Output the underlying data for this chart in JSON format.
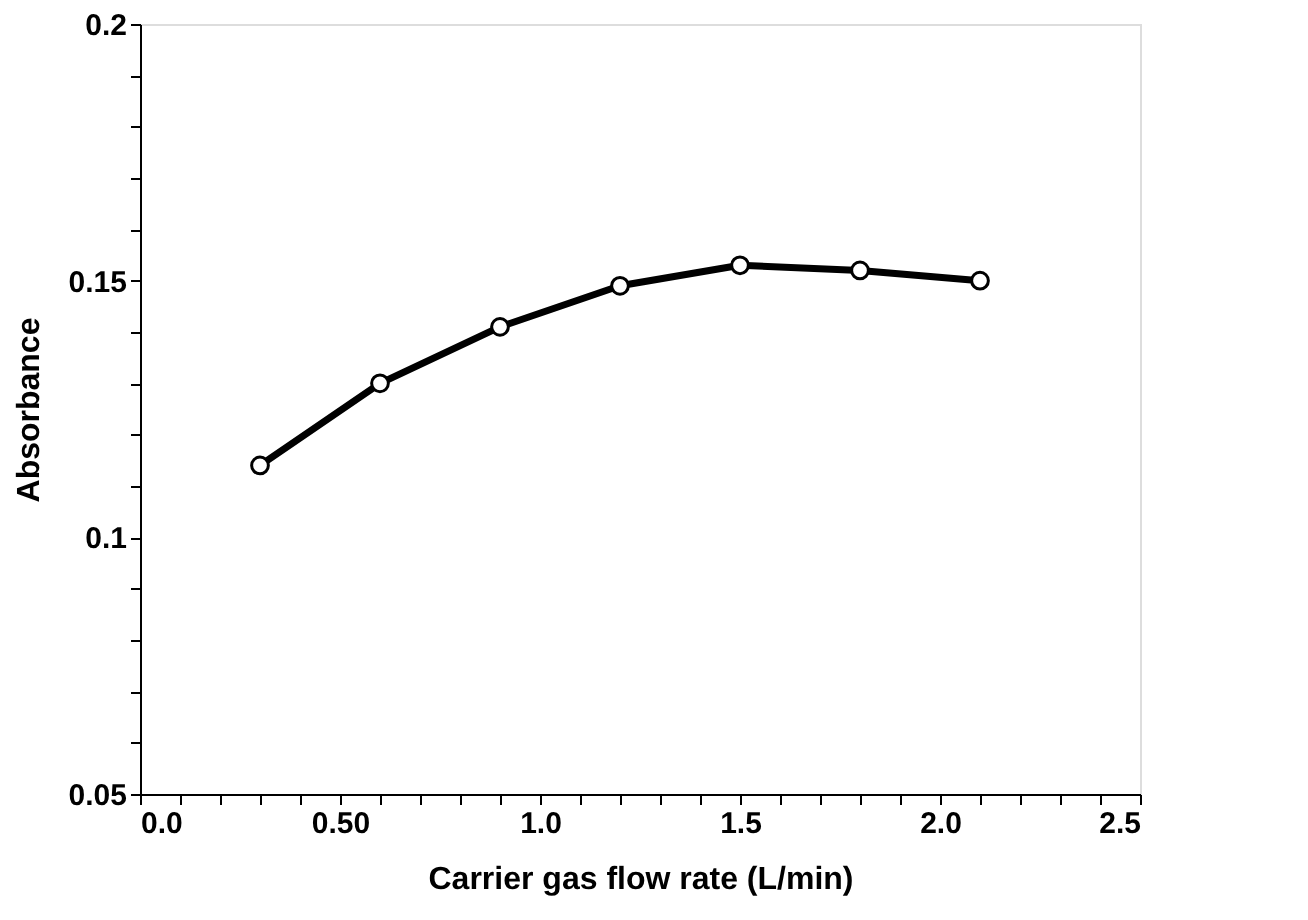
{
  "chart_data": {
    "type": "line",
    "xlabel": "Carrier gas flow rate (L/min)",
    "ylabel": "Absorbance",
    "x": [
      0.3,
      0.6,
      0.9,
      1.2,
      1.5,
      1.8,
      2.1
    ],
    "series": [
      {
        "color": "#000000",
        "values": [
          0.114,
          0.13,
          0.141,
          0.149,
          0.153,
          0.152,
          0.15
        ]
      }
    ],
    "xlim": [
      0.0,
      2.5
    ],
    "xticks": [
      {
        "value": 0.0,
        "label": "0.0"
      },
      {
        "value": 0.1,
        "label": null
      },
      {
        "value": 0.2,
        "label": null
      },
      {
        "value": 0.3,
        "label": null
      },
      {
        "value": 0.4,
        "label": null
      },
      {
        "value": 0.5,
        "label": "0.50"
      },
      {
        "value": 0.6,
        "label": null
      },
      {
        "value": 0.7,
        "label": null
      },
      {
        "value": 0.8,
        "label": null
      },
      {
        "value": 0.9,
        "label": null
      },
      {
        "value": 1.0,
        "label": "1.0"
      },
      {
        "value": 1.1,
        "label": null
      },
      {
        "value": 1.2,
        "label": null
      },
      {
        "value": 1.3,
        "label": null
      },
      {
        "value": 1.4,
        "label": null
      },
      {
        "value": 1.5,
        "label": "1.5"
      },
      {
        "value": 1.6,
        "label": null
      },
      {
        "value": 1.7,
        "label": null
      },
      {
        "value": 1.8,
        "label": null
      },
      {
        "value": 1.9,
        "label": null
      },
      {
        "value": 2.0,
        "label": "2.0"
      },
      {
        "value": 2.1,
        "label": null
      },
      {
        "value": 2.2,
        "label": null
      },
      {
        "value": 2.3,
        "label": null
      },
      {
        "value": 2.4,
        "label": null
      },
      {
        "value": 2.5,
        "label": "2.5"
      }
    ],
    "ylim": [
      0.05,
      0.2
    ],
    "yticks": [
      0.05,
      {
        "value": 0.06,
        "label": null
      },
      {
        "value": 0.07,
        "label": null
      },
      {
        "value": 0.08,
        "label": null
      },
      {
        "value": 0.09,
        "label": null
      },
      0.1,
      {
        "value": 0.11,
        "label": null
      },
      {
        "value": 0.12,
        "label": null
      },
      {
        "value": 0.13,
        "label": null
      },
      {
        "value": 0.14,
        "label": null
      },
      0.15,
      {
        "value": 0.16,
        "label": null
      },
      {
        "value": 0.17,
        "label": null
      },
      {
        "value": 0.18,
        "label": null
      },
      {
        "value": 0.19,
        "label": null
      },
      0.2
    ],
    "grid": false,
    "legend": false,
    "marker": "circle",
    "line_style": "solid"
  }
}
